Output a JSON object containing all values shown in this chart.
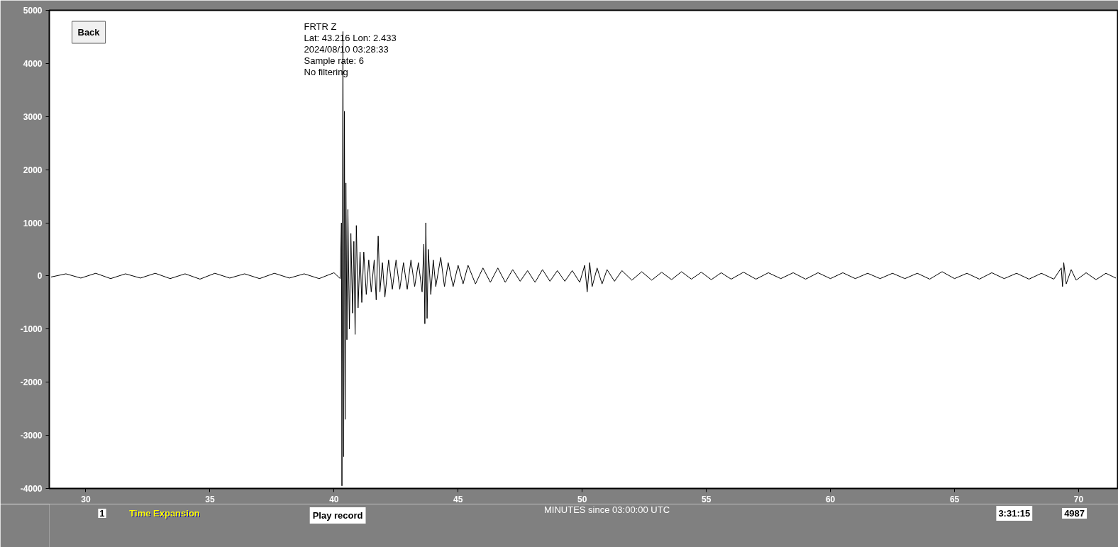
{
  "chart_data": {
    "type": "line",
    "xlabel": "MINUTES since 03:00:00 UTC",
    "annotations": [
      "FRTR  Z",
      "Lat: 43.216 Lon: 2.433",
      "2024/08/10 03:28:33",
      "Sample rate: 6",
      "No filtering",
      "Back",
      "1",
      "Time Expansion",
      "Play record",
      "3:31:15",
      "4987"
    ],
    "xlim": [
      28.53,
      71.6
    ],
    "xticks": [
      30,
      35,
      40,
      45,
      50,
      55,
      60,
      65,
      70
    ],
    "ylim": [
      -4000,
      5000
    ],
    "yticks": [
      -4000,
      -3000,
      -2000,
      -1000,
      0,
      1000,
      2000,
      3000,
      4000,
      5000
    ],
    "grid": false,
    "marker": "none",
    "line_style": "solid",
    "series": [
      {
        "color": "#000000",
        "x": [
          28.6,
          29.2,
          29.8,
          30.4,
          31,
          31.6,
          32.2,
          32.8,
          33.4,
          34,
          34.6,
          35.2,
          35.8,
          36.4,
          37,
          37.6,
          38.2,
          38.8,
          39.4,
          40.0,
          40.25,
          40.3,
          40.32,
          40.36,
          40.39,
          40.42,
          40.45,
          40.48,
          40.52,
          40.56,
          40.62,
          40.68,
          40.75,
          40.8,
          40.85,
          40.9,
          40.97,
          41.05,
          41.12,
          41.2,
          41.3,
          41.4,
          41.5,
          41.62,
          41.7,
          41.78,
          41.85,
          41.95,
          42.05,
          42.2,
          42.35,
          42.5,
          42.65,
          42.8,
          42.95,
          43.1,
          43.25,
          43.4,
          43.55,
          43.62,
          43.66,
          43.7,
          43.75,
          43.8,
          43.9,
          44.0,
          44.1,
          44.3,
          44.45,
          44.6,
          44.8,
          45.0,
          45.2,
          45.4,
          45.7,
          46.0,
          46.3,
          46.6,
          46.9,
          47.2,
          47.5,
          47.8,
          48.1,
          48.4,
          48.7,
          49.0,
          49.3,
          49.6,
          49.9,
          50.1,
          50.2,
          50.3,
          50.4,
          50.6,
          50.8,
          51.0,
          51.3,
          51.6,
          52,
          52.4,
          52.8,
          53.2,
          53.6,
          54,
          54.4,
          54.8,
          55.2,
          55.6,
          56,
          56.5,
          57,
          57.5,
          58,
          58.5,
          59,
          59.5,
          60,
          60.5,
          61,
          61.5,
          62,
          62.5,
          63,
          63.5,
          64,
          64.5,
          65,
          65.5,
          66,
          66.5,
          67,
          67.5,
          68,
          68.5,
          69,
          69.3,
          69.35,
          69.4,
          69.5,
          69.7,
          69.9,
          70.3,
          70.7,
          71.1,
          71.5
        ],
        "values": [
          -20,
          40,
          -40,
          50,
          -50,
          40,
          -40,
          50,
          -50,
          40,
          -60,
          50,
          -40,
          40,
          -50,
          50,
          -40,
          40,
          -50,
          60,
          -50,
          1000,
          -3950,
          4600,
          -3400,
          3100,
          -2700,
          1750,
          -1200,
          1250,
          -1000,
          800,
          -700,
          650,
          -1100,
          950,
          -600,
          450,
          -500,
          450,
          -350,
          300,
          -300,
          300,
          -450,
          750,
          -300,
          250,
          -400,
          300,
          -250,
          300,
          -250,
          250,
          -250,
          300,
          -200,
          250,
          -300,
          600,
          -900,
          1000,
          -800,
          500,
          -350,
          300,
          -200,
          350,
          -200,
          250,
          -200,
          200,
          -150,
          200,
          -150,
          150,
          -120,
          150,
          -120,
          120,
          -100,
          100,
          -120,
          120,
          -100,
          100,
          -100,
          100,
          -120,
          200,
          -300,
          250,
          -200,
          150,
          -150,
          120,
          -100,
          100,
          -80,
          80,
          -80,
          70,
          -70,
          80,
          -60,
          70,
          -70,
          60,
          -60,
          70,
          -60,
          60,
          -50,
          60,
          -60,
          60,
          -50,
          60,
          -50,
          50,
          -50,
          50,
          -50,
          50,
          -60,
          80,
          -50,
          50,
          -60,
          60,
          -50,
          50,
          -60,
          50,
          -60,
          150,
          -200,
          250,
          -150,
          120,
          -80,
          60,
          -70,
          50,
          -40
        ]
      }
    ]
  }
}
